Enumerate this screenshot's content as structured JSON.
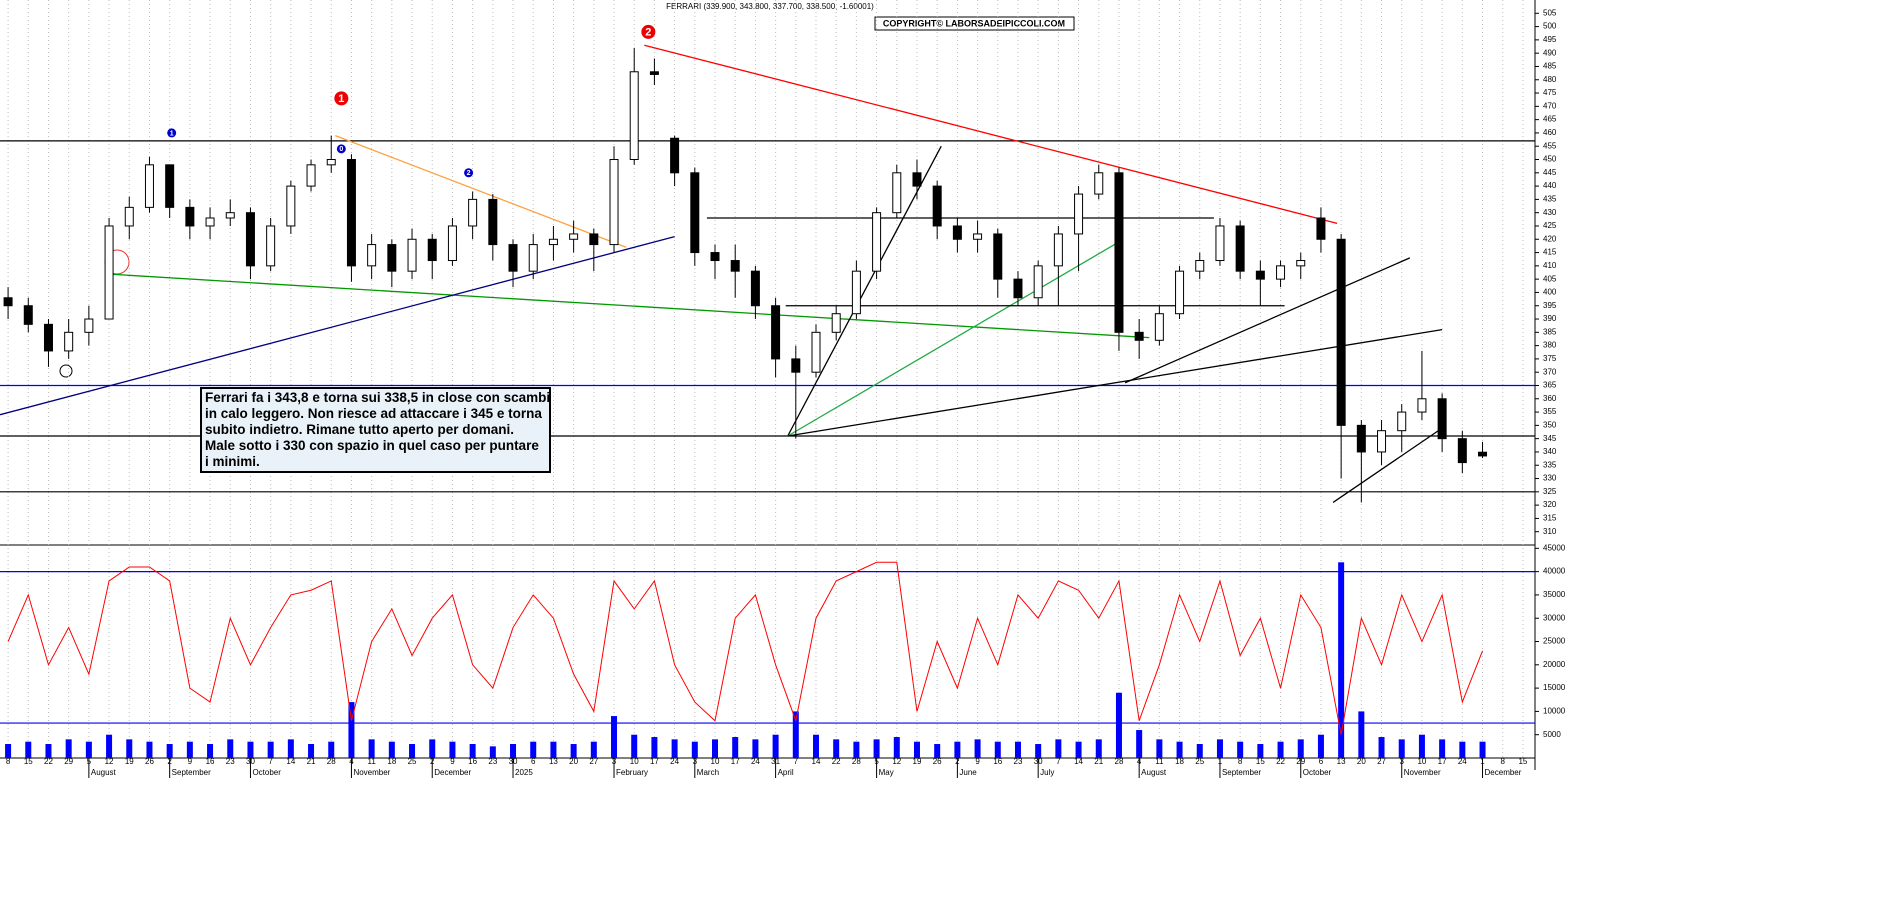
{
  "chart_data": [
    {
      "type": "candlestick",
      "title": "FERRARI (339.900, 343.800, 337.700, 338.500, -1.60001)",
      "copyright": "COPYRIGHT© LABORSADEIPICCOLI.COM",
      "comment": [
        "Ferrari fa i 343,8 e torna sui 338,5 in close con scambi",
        "in calo leggero. Non riesce ad attaccare i 345 e torna",
        "subito indietro. Rimane tutto aperto per domani.",
        "Male sotto i 330 con spazio in quel caso per puntare",
        "i minimi."
      ],
      "x": [
        0,
        1,
        2,
        3,
        4,
        5,
        6,
        7,
        8,
        9,
        10,
        11,
        12,
        13,
        14,
        15,
        16,
        17,
        18,
        19,
        20,
        21,
        22,
        23,
        24,
        25,
        26,
        27,
        28,
        29,
        30,
        31,
        32,
        33,
        34,
        35,
        36,
        37,
        38,
        39,
        40,
        41,
        42,
        43,
        44,
        45,
        46,
        47,
        48,
        49,
        50,
        51,
        52,
        53,
        54,
        55,
        56,
        57,
        58,
        59,
        60,
        61,
        62,
        63,
        64,
        65,
        66,
        67,
        68,
        69,
        70,
        71,
        72,
        73
      ],
      "open": [
        398,
        395,
        388,
        378,
        385,
        390,
        425,
        432,
        448,
        432,
        425,
        428,
        430,
        410,
        425,
        440,
        448,
        450,
        410,
        418,
        408,
        420,
        412,
        425,
        435,
        418,
        408,
        418,
        420,
        422,
        418,
        450,
        483,
        458,
        445,
        415,
        412,
        408,
        395,
        375,
        370,
        385,
        392,
        408,
        430,
        445,
        440,
        425,
        420,
        422,
        405,
        398,
        410,
        422,
        437,
        445,
        385,
        382,
        392,
        408,
        412,
        425,
        408,
        405,
        410,
        428,
        420,
        350,
        340,
        348,
        355,
        360,
        345,
        339.9
      ],
      "high": [
        402,
        398,
        390,
        390,
        395,
        428,
        436,
        451,
        448,
        435,
        432,
        435,
        432,
        428,
        442,
        450,
        459,
        452,
        422,
        420,
        424,
        422,
        428,
        438,
        437,
        420,
        422,
        425,
        427,
        424,
        455,
        492,
        488,
        459,
        447,
        418,
        418,
        410,
        398,
        380,
        388,
        395,
        412,
        432,
        448,
        450,
        442,
        428,
        427,
        424,
        408,
        412,
        425,
        440,
        448,
        447,
        390,
        395,
        410,
        415,
        428,
        427,
        412,
        412,
        415,
        432,
        422,
        352,
        352,
        358,
        378,
        362,
        348,
        343.8
      ],
      "low": [
        390,
        385,
        372,
        375,
        380,
        390,
        420,
        430,
        428,
        420,
        420,
        425,
        405,
        408,
        422,
        438,
        445,
        404,
        405,
        402,
        405,
        405,
        410,
        420,
        412,
        402,
        405,
        412,
        415,
        408,
        415,
        448,
        478,
        440,
        410,
        405,
        398,
        390,
        368,
        345,
        368,
        382,
        390,
        405,
        428,
        435,
        420,
        415,
        415,
        398,
        395,
        395,
        395,
        408,
        435,
        378,
        375,
        380,
        390,
        405,
        410,
        405,
        395,
        402,
        405,
        415,
        330,
        321,
        335,
        340,
        352,
        340,
        332,
        337.7
      ],
      "close": [
        395,
        388,
        378,
        385,
        390,
        425,
        432,
        448,
        432,
        425,
        428,
        430,
        410,
        425,
        440,
        448,
        450,
        410,
        418,
        408,
        420,
        412,
        425,
        435,
        418,
        408,
        418,
        420,
        422,
        418,
        450,
        483,
        482,
        445,
        415,
        412,
        408,
        395,
        375,
        370,
        385,
        392,
        408,
        430,
        445,
        440,
        425,
        420,
        422,
        405,
        398,
        410,
        422,
        437,
        445,
        385,
        382,
        392,
        408,
        412,
        425,
        408,
        405,
        410,
        412,
        420,
        350,
        340,
        348,
        355,
        360,
        345,
        336,
        338.5
      ],
      "up_color": "#ffffff",
      "down_color": "#000000",
      "xlim": [
        -0.4,
        75.4
      ],
      "xticks": [
        {
          "value": 0,
          "label": "8"
        },
        {
          "value": 1,
          "label": "15"
        },
        {
          "value": 2,
          "label": "22"
        },
        {
          "value": 3,
          "label": "29"
        },
        {
          "value": 4,
          "label": "5"
        },
        {
          "value": 5,
          "label": "12"
        },
        {
          "value": 6,
          "label": "19"
        },
        {
          "value": 7,
          "label": "26"
        },
        {
          "value": 8,
          "label": "2"
        },
        {
          "value": 9,
          "label": "9"
        },
        {
          "value": 10,
          "label": "16"
        },
        {
          "value": 11,
          "label": "23"
        },
        {
          "value": 12,
          "label": "30"
        },
        {
          "value": 13,
          "label": "7"
        },
        {
          "value": 14,
          "label": "14"
        },
        {
          "value": 15,
          "label": "21"
        },
        {
          "value": 16,
          "label": "28"
        },
        {
          "value": 17,
          "label": "4"
        },
        {
          "value": 18,
          "label": "11"
        },
        {
          "value": 19,
          "label": "18"
        },
        {
          "value": 20,
          "label": "25"
        },
        {
          "value": 21,
          "label": "2"
        },
        {
          "value": 22,
          "label": "9"
        },
        {
          "value": 23,
          "label": "16"
        },
        {
          "value": 24,
          "label": "23"
        },
        {
          "value": 25,
          "label": "30"
        },
        {
          "value": 26,
          "label": "6"
        },
        {
          "value": 27,
          "label": "13"
        },
        {
          "value": 28,
          "label": "20"
        },
        {
          "value": 29,
          "label": "27"
        },
        {
          "value": 30,
          "label": "3"
        },
        {
          "value": 31,
          "label": "10"
        },
        {
          "value": 32,
          "label": "17"
        },
        {
          "value": 33,
          "label": "24"
        },
        {
          "value": 34,
          "label": "3"
        },
        {
          "value": 35,
          "label": "10"
        },
        {
          "value": 36,
          "label": "17"
        },
        {
          "value": 37,
          "label": "24"
        },
        {
          "value": 38,
          "label": "31"
        },
        {
          "value": 39,
          "label": "7"
        },
        {
          "value": 40,
          "label": "14"
        },
        {
          "value": 41,
          "label": "22"
        },
        {
          "value": 42,
          "label": "28"
        },
        {
          "value": 43,
          "label": "5"
        },
        {
          "value": 44,
          "label": "12"
        },
        {
          "value": 45,
          "label": "19"
        },
        {
          "value": 46,
          "label": "26"
        },
        {
          "value": 47,
          "label": "2"
        },
        {
          "value": 48,
          "label": "9"
        },
        {
          "value": 49,
          "label": "16"
        },
        {
          "value": 50,
          "label": "23"
        },
        {
          "value": 51,
          "label": "30"
        },
        {
          "value": 52,
          "label": "7"
        },
        {
          "value": 53,
          "label": "14"
        },
        {
          "value": 54,
          "label": "21"
        },
        {
          "value": 55,
          "label": "28"
        },
        {
          "value": 56,
          "label": "4"
        },
        {
          "value": 57,
          "label": "11"
        },
        {
          "value": 58,
          "label": "18"
        },
        {
          "value": 59,
          "label": "25"
        },
        {
          "value": 60,
          "label": "1"
        },
        {
          "value": 61,
          "label": "8"
        },
        {
          "value": 62,
          "label": "15"
        },
        {
          "value": 63,
          "label": "22"
        },
        {
          "value": 64,
          "label": "29"
        },
        {
          "value": 65,
          "label": "6"
        },
        {
          "value": 66,
          "label": "13"
        },
        {
          "value": 67,
          "label": "20"
        },
        {
          "value": 68,
          "label": "27"
        },
        {
          "value": 69,
          "label": "3"
        },
        {
          "value": 70,
          "label": "10"
        },
        {
          "value": 71,
          "label": "17"
        },
        {
          "value": 72,
          "label": "24"
        },
        {
          "value": 73,
          "label": "1"
        },
        {
          "value": 74,
          "label": "8"
        },
        {
          "value": 75,
          "label": "15"
        }
      ],
      "month_labels": [
        {
          "value": 4,
          "label": "August"
        },
        {
          "value": 8,
          "label": "September"
        },
        {
          "value": 12,
          "label": "October"
        },
        {
          "value": 17,
          "label": "November"
        },
        {
          "value": 21,
          "label": "December"
        },
        {
          "value": 25,
          "label": "2025"
        },
        {
          "value": 30,
          "label": "February"
        },
        {
          "value": 34,
          "label": "March"
        },
        {
          "value": 38,
          "label": "April"
        },
        {
          "value": 43,
          "label": "May"
        },
        {
          "value": 47,
          "label": "June"
        },
        {
          "value": 51,
          "label": "July"
        },
        {
          "value": 56,
          "label": "August"
        },
        {
          "value": 60,
          "label": "September"
        },
        {
          "value": 64,
          "label": "October"
        },
        {
          "value": 69,
          "label": "November"
        },
        {
          "value": 73,
          "label": "December"
        }
      ],
      "ylim": [
        305,
        510
      ],
      "yticks": [
        310,
        315,
        320,
        325,
        330,
        335,
        340,
        345,
        350,
        355,
        360,
        365,
        370,
        375,
        380,
        385,
        390,
        395,
        400,
        405,
        410,
        415,
        420,
        425,
        430,
        435,
        440,
        445,
        450,
        455,
        460,
        465,
        470,
        475,
        480,
        485,
        490,
        495,
        500,
        505
      ],
      "hlines": [
        {
          "y": 457,
          "color": "#000000"
        },
        {
          "y": 365,
          "color": "#0000ff"
        },
        {
          "y": 346,
          "color": "#000000"
        },
        {
          "y": 325,
          "color": "#000000"
        }
      ],
      "trendlines": [
        {
          "x": [
            31.5,
            65.8
          ],
          "y": [
            493,
            426
          ],
          "color": "#ff0000"
        },
        {
          "x": [
            16.2,
            30.6
          ],
          "y": [
            459,
            417
          ],
          "color": "#ffa040"
        },
        {
          "x": [
            4.8,
            56.5
          ],
          "y": [
            407,
            383
          ],
          "color": "#009900"
        },
        {
          "x": [
            -0.4,
            33.0
          ],
          "y": [
            354,
            421
          ],
          "color": "#000080"
        },
        {
          "x": [
            38.6,
            46.2
          ],
          "y": [
            346,
            455
          ],
          "color": "#000000"
        },
        {
          "x": [
            38.6,
            55.0
          ],
          "y": [
            346,
            419
          ],
          "color": "#22aa44"
        },
        {
          "x": [
            38.6,
            71.0
          ],
          "y": [
            346,
            386
          ],
          "color": "#000000"
        },
        {
          "x": [
            55.3,
            69.4
          ],
          "y": [
            366,
            413
          ],
          "color": "#000000"
        },
        {
          "x": [
            65.6,
            71.2
          ],
          "y": [
            321,
            350
          ],
          "color": "#000000"
        },
        {
          "x": [
            34.6,
            59.7
          ],
          "y": [
            428,
            428
          ],
          "color": "#000000"
        },
        {
          "x": [
            38.5,
            63.2
          ],
          "y": [
            395,
            395
          ],
          "color": "#000000"
        }
      ],
      "markers": [
        {
          "text": "1",
          "x": 16.5,
          "y": 473,
          "color": "#ee0000"
        },
        {
          "text": "2",
          "x": 31.7,
          "y": 498,
          "color": "#ee0000"
        },
        {
          "text": "1",
          "x": 8.1,
          "y": 460,
          "color": "#0000cc"
        },
        {
          "text": "0",
          "x": 16.5,
          "y": 454,
          "color": "#0000cc"
        },
        {
          "text": "2",
          "x": 22.8,
          "y": 445,
          "color": "#0000cc"
        }
      ]
    },
    {
      "type": "volume",
      "x": [
        0,
        1,
        2,
        3,
        4,
        5,
        6,
        7,
        8,
        9,
        10,
        11,
        12,
        13,
        14,
        15,
        16,
        17,
        18,
        19,
        20,
        21,
        22,
        23,
        24,
        25,
        26,
        27,
        28,
        29,
        30,
        31,
        32,
        33,
        34,
        35,
        36,
        37,
        38,
        39,
        40,
        41,
        42,
        43,
        44,
        45,
        46,
        47,
        48,
        49,
        50,
        51,
        52,
        53,
        54,
        55,
        56,
        57,
        58,
        59,
        60,
        61,
        62,
        63,
        64,
        65,
        66,
        67,
        68,
        69,
        70,
        71,
        72,
        73
      ],
      "line_values": [
        25000,
        35000,
        20000,
        28000,
        18000,
        38000,
        41000,
        41000,
        38000,
        15000,
        12000,
        30000,
        20000,
        28000,
        35000,
        36000,
        38000,
        8000,
        25000,
        32000,
        22000,
        30000,
        35000,
        20000,
        15000,
        28000,
        35000,
        30000,
        18000,
        10000,
        38000,
        32000,
        38000,
        20000,
        12000,
        8000,
        30000,
        35000,
        20000,
        8000,
        30000,
        38000,
        40000,
        42000,
        42000,
        10000,
        25000,
        15000,
        30000,
        20000,
        35000,
        30000,
        38000,
        36000,
        30000,
        38000,
        8000,
        20000,
        35000,
        25000,
        38000,
        22000,
        30000,
        15000,
        35000,
        28000,
        5000,
        30000,
        20000,
        35000,
        25000,
        35000,
        12000,
        23000
      ],
      "line_color": "#ff0000",
      "bar_values": [
        3000,
        3500,
        3000,
        4000,
        3500,
        5000,
        4000,
        3500,
        3000,
        3500,
        3000,
        4000,
        3500,
        3500,
        4000,
        3000,
        3500,
        12000,
        4000,
        3500,
        3000,
        4000,
        3500,
        3000,
        2500,
        3000,
        3500,
        3500,
        3000,
        3500,
        9000,
        5000,
        4500,
        4000,
        3500,
        4000,
        4500,
        4000,
        5000,
        10000,
        5000,
        4000,
        3500,
        4000,
        4500,
        3500,
        3000,
        3500,
        4000,
        3500,
        3500,
        3000,
        4000,
        3500,
        4000,
        14000,
        6000,
        4000,
        3500,
        3000,
        4000,
        3500,
        3000,
        3500,
        4000,
        5000,
        42000,
        10000,
        4500,
        4000,
        5000,
        4000,
        3500,
        3500
      ],
      "bar_color": "#0000ff",
      "ylim": [
        0,
        45500
      ],
      "yticks": [
        5000,
        10000,
        15000,
        20000,
        25000,
        30000,
        35000,
        40000,
        45000
      ],
      "hlines": [
        {
          "y": 40000,
          "color": "#0000ff"
        },
        {
          "y": 7500,
          "color": "#0000ff"
        }
      ]
    }
  ]
}
